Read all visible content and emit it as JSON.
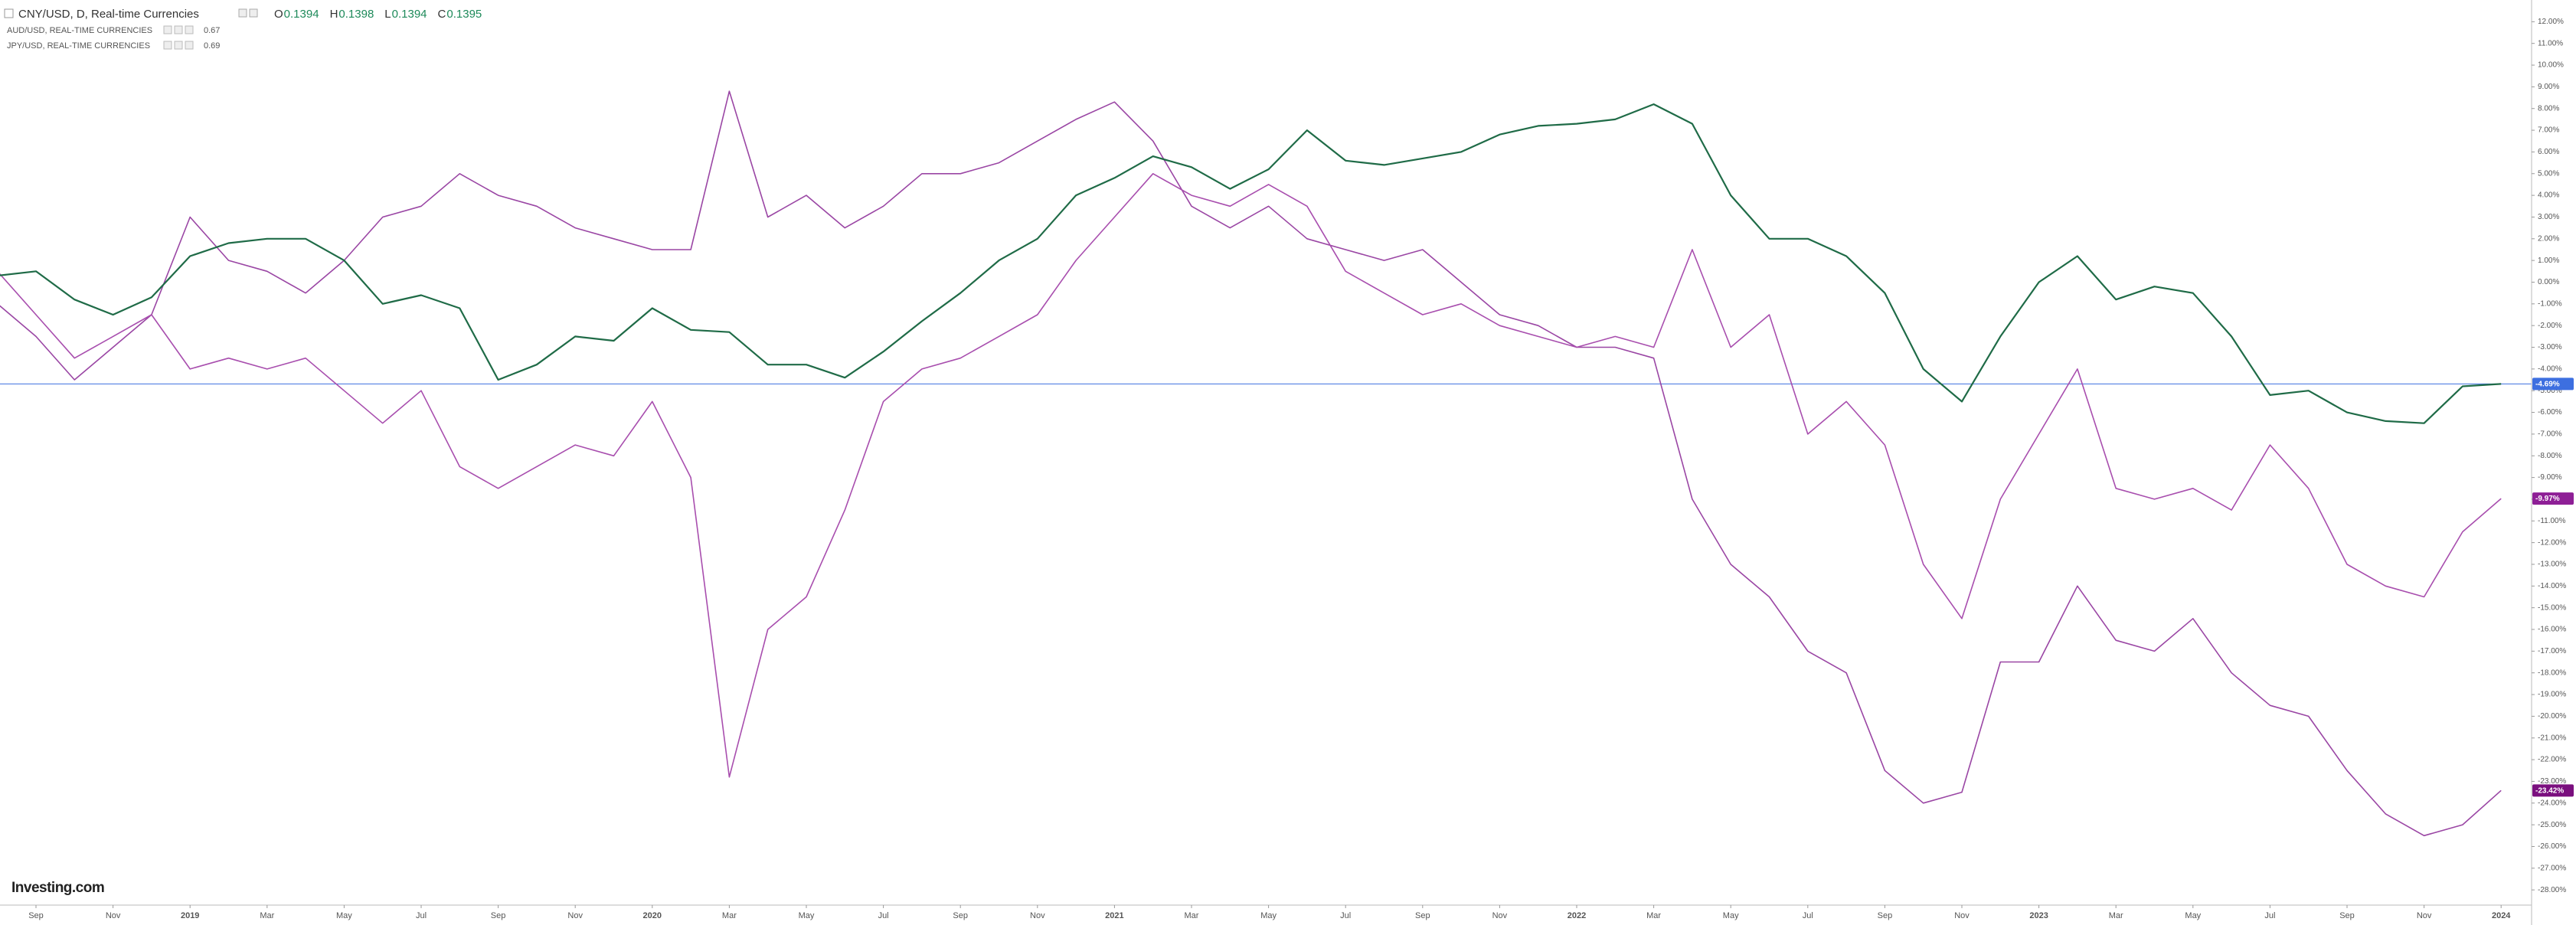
{
  "header": {
    "ohlc": [
      {
        "label": "O",
        "value": 0.1394
      },
      {
        "label": "H",
        "value": 0.1398
      },
      {
        "label": "L",
        "value": 0.1394
      },
      {
        "label": "C",
        "value": 0.1395
      }
    ],
    "logo": "Investing.com"
  },
  "chart_data": {
    "type": "line",
    "categories": [
      null,
      "Sep",
      null,
      "Nov",
      null,
      "2019",
      null,
      "Mar",
      null,
      "May",
      null,
      "Jul",
      null,
      "Sep",
      null,
      "Nov",
      null,
      "2020",
      null,
      "Mar",
      null,
      "May",
      null,
      "Jul",
      null,
      "Sep",
      null,
      "Nov",
      null,
      "2021",
      null,
      "Mar",
      null,
      "May",
      null,
      "Jul",
      null,
      "Sep",
      null,
      "Nov",
      null,
      "2022",
      null,
      "Mar",
      null,
      "May",
      null,
      "Jul",
      null,
      "Sep",
      null,
      "Nov",
      null,
      "2023",
      null,
      "Mar",
      null,
      "May",
      null,
      "Jul",
      null,
      "Sep",
      null,
      "Nov",
      null,
      "2024"
    ],
    "series": [
      {
        "name": "CNY/USD, D, Real-time Currencies",
        "color": "#1f6b47",
        "end_label": "-4.69%",
        "end_label_color": "#3d6fe0",
        "values": [
          0.3,
          0.5,
          -0.8,
          -1.5,
          -0.7,
          1.2,
          1.8,
          2.0,
          2.0,
          1.0,
          -1.0,
          -0.6,
          -1.2,
          -4.5,
          -3.8,
          -2.5,
          -2.7,
          -1.2,
          -2.2,
          -2.3,
          -3.8,
          -3.8,
          -4.4,
          -3.2,
          -1.8,
          -0.5,
          1.0,
          2.0,
          4.0,
          4.8,
          5.8,
          5.3,
          4.3,
          5.2,
          7.0,
          5.6,
          5.4,
          5.7,
          6.0,
          6.8,
          7.2,
          7.3,
          7.5,
          8.2,
          7.3,
          4.0,
          2.0,
          2.0,
          1.2,
          -0.5,
          -4.0,
          -5.5,
          -2.5,
          0.0,
          1.2,
          -0.8,
          -0.2,
          -0.5,
          -2.5,
          -5.2,
          -5.0,
          -6.0,
          -6.4,
          -6.5,
          -4.8,
          -4.69
        ]
      },
      {
        "name": "AUD/USD, REAL-TIME CURRENCIES",
        "price": 0.67,
        "color": "#a84eae",
        "end_label": "-9.97%",
        "end_label_color": "#8e1f96",
        "values": [
          0.5,
          -1.5,
          -3.5,
          -2.5,
          -1.5,
          -4.0,
          -3.5,
          -4.0,
          -3.5,
          -5.0,
          -6.5,
          -5.0,
          -8.5,
          -9.5,
          -8.5,
          -7.5,
          -8.0,
          -5.5,
          -9.0,
          -22.8,
          -16.0,
          -14.5,
          -10.5,
          -5.5,
          -4.0,
          -3.5,
          -2.5,
          -1.5,
          1.0,
          3.0,
          5.0,
          4.0,
          3.5,
          4.5,
          3.5,
          0.5,
          -0.5,
          -1.5,
          -1.0,
          -2.0,
          -2.5,
          -3.0,
          -2.5,
          -3.0,
          1.5,
          -3.0,
          -1.5,
          -7.0,
          -5.5,
          -7.5,
          -13.0,
          -15.5,
          -10.0,
          -7.0,
          -4.0,
          -9.5,
          -10.0,
          -9.5,
          -10.5,
          -7.5,
          -9.5,
          -13.0,
          -14.0,
          -14.5,
          -11.5,
          -9.97
        ]
      },
      {
        "name": "JPY/USD, REAL-TIME CURRENCIES",
        "price": 0.69,
        "color": "#9a46a4",
        "end_label": "-23.42%",
        "end_label_color": "#7a0f7e",
        "values": [
          -1.0,
          -2.5,
          -4.5,
          -3.0,
          -1.5,
          3.0,
          1.0,
          0.5,
          -0.5,
          1.0,
          3.0,
          3.5,
          5.0,
          4.0,
          3.5,
          2.5,
          2.0,
          1.5,
          1.5,
          8.8,
          3.0,
          4.0,
          2.5,
          3.5,
          5.0,
          5.0,
          5.5,
          6.5,
          7.5,
          8.3,
          6.5,
          3.5,
          2.5,
          3.5,
          2.0,
          1.5,
          1.0,
          1.5,
          0.0,
          -1.5,
          -2.0,
          -3.0,
          -3.0,
          -3.5,
          -10.0,
          -13.0,
          -14.5,
          -17.0,
          -18.0,
          -22.5,
          -24.0,
          -23.5,
          -17.5,
          -17.5,
          -14.0,
          -16.5,
          -17.0,
          -15.5,
          -18.0,
          -19.5,
          -20.0,
          -22.5,
          -24.5,
          -25.5,
          -25.0,
          -23.42
        ]
      }
    ],
    "ylim": [
      -28.7,
      13.0
    ],
    "yticks": [
      {
        "value": 12,
        "label": "12.00%"
      },
      {
        "value": 11,
        "label": "11.00%"
      },
      {
        "value": 10,
        "label": "10.00%"
      },
      {
        "value": 9,
        "label": "9.00%"
      },
      {
        "value": 8,
        "label": "8.00%"
      },
      {
        "value": 7,
        "label": "7.00%"
      },
      {
        "value": 6,
        "label": "6.00%"
      },
      {
        "value": 5,
        "label": "5.00%"
      },
      {
        "value": 4,
        "label": "4.00%"
      },
      {
        "value": 3,
        "label": "3.00%"
      },
      {
        "value": 2,
        "label": "2.00%"
      },
      {
        "value": 1,
        "label": "1.00%"
      },
      {
        "value": 0,
        "label": "0.00%"
      },
      {
        "value": -1,
        "label": "-1.00%"
      },
      {
        "value": -2,
        "label": "-2.00%"
      },
      {
        "value": -3,
        "label": "-3.00%"
      },
      {
        "value": -4,
        "label": "-4.00%"
      },
      {
        "value": -5,
        "label": "-5.00%"
      },
      {
        "value": -6,
        "label": "-6.00%"
      },
      {
        "value": -7,
        "label": "-7.00%"
      },
      {
        "value": -8,
        "label": "-8.00%"
      },
      {
        "value": -9,
        "label": "-9.00%"
      },
      {
        "value": -10,
        "label": "-10.00%"
      },
      {
        "value": -11,
        "label": "-11.00%"
      },
      {
        "value": -12,
        "label": "-12.00%"
      },
      {
        "value": -13,
        "label": "-13.00%"
      },
      {
        "value": -14,
        "label": "-14.00%"
      },
      {
        "value": -15,
        "label": "-15.00%"
      },
      {
        "value": -16,
        "label": "-16.00%"
      },
      {
        "value": -17,
        "label": "-17.00%"
      },
      {
        "value": -18,
        "label": "-18.00%"
      },
      {
        "value": -19,
        "label": "-19.00%"
      },
      {
        "value": -20,
        "label": "-20.00%"
      },
      {
        "value": -21,
        "label": "-21.00%"
      },
      {
        "value": -22,
        "label": "-22.00%"
      },
      {
        "value": -23,
        "label": "-23.00%"
      },
      {
        "value": -24,
        "label": "-24.00%"
      },
      {
        "value": -25,
        "label": "-25.00%"
      },
      {
        "value": -26,
        "label": "-26.00%"
      },
      {
        "value": -27,
        "label": "-27.00%"
      },
      {
        "value": -28,
        "label": "-28.00%"
      }
    ],
    "grid": false
  }
}
